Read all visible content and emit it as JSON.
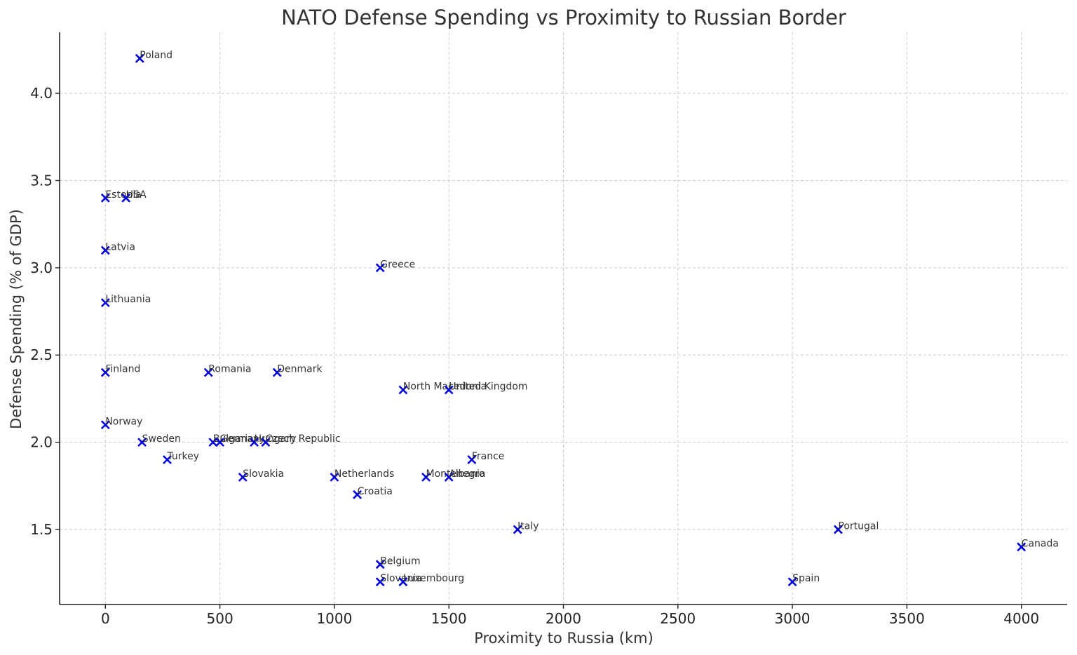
{
  "chart_data": {
    "type": "scatter",
    "title": "NATO Defense Spending vs Proximity to Russian Border",
    "xlabel": "Proximity to Russia (km)",
    "ylabel": "Defense Spending (% of GDP)",
    "xlim": [
      -200,
      4200
    ],
    "ylim": [
      1.07,
      4.35
    ],
    "xticks": [
      0,
      500,
      1000,
      1500,
      2000,
      2500,
      3000,
      3500,
      4000
    ],
    "yticks": [
      1.5,
      2.0,
      2.5,
      3.0,
      3.5,
      4.0
    ],
    "xtick_labels": [
      "0",
      "500",
      "1000",
      "1500",
      "2000",
      "2500",
      "3000",
      "3500",
      "4000"
    ],
    "ytick_labels": [
      "1.5",
      "2.0",
      "2.5",
      "3.0",
      "3.5",
      "4.0"
    ],
    "grid": true,
    "marker": "x",
    "marker_color": "#0000dd",
    "points": [
      {
        "label": "Poland",
        "x": 150,
        "y": 4.2
      },
      {
        "label": "Estonia",
        "x": 0,
        "y": 3.4
      },
      {
        "label": "USA",
        "x": 90,
        "y": 3.4
      },
      {
        "label": "Latvia",
        "x": 0,
        "y": 3.1
      },
      {
        "label": "Greece",
        "x": 1200,
        "y": 3.0
      },
      {
        "label": "Lithuania",
        "x": 0,
        "y": 2.8
      },
      {
        "label": "Finland",
        "x": 0,
        "y": 2.4
      },
      {
        "label": "Romania",
        "x": 450,
        "y": 2.4
      },
      {
        "label": "Denmark",
        "x": 750,
        "y": 2.4
      },
      {
        "label": "North Macedonia",
        "x": 1300,
        "y": 2.3
      },
      {
        "label": "United Kingdom",
        "x": 1500,
        "y": 2.3
      },
      {
        "label": "Norway",
        "x": 0,
        "y": 2.1
      },
      {
        "label": "Sweden",
        "x": 160,
        "y": 2.0
      },
      {
        "label": "Bulgaria",
        "x": 470,
        "y": 2.0
      },
      {
        "label": "Germany",
        "x": 500,
        "y": 2.0
      },
      {
        "label": "Hungary",
        "x": 650,
        "y": 2.0
      },
      {
        "label": "Czech Republic",
        "x": 700,
        "y": 2.0
      },
      {
        "label": "Turkey",
        "x": 270,
        "y": 1.9
      },
      {
        "label": "France",
        "x": 1600,
        "y": 1.9
      },
      {
        "label": "Slovakia",
        "x": 600,
        "y": 1.8
      },
      {
        "label": "Netherlands",
        "x": 1000,
        "y": 1.8
      },
      {
        "label": "Montenegro",
        "x": 1400,
        "y": 1.8
      },
      {
        "label": "Albania",
        "x": 1500,
        "y": 1.8
      },
      {
        "label": "Croatia",
        "x": 1100,
        "y": 1.7
      },
      {
        "label": "Italy",
        "x": 1800,
        "y": 1.5
      },
      {
        "label": "Portugal",
        "x": 3200,
        "y": 1.5
      },
      {
        "label": "Canada",
        "x": 4000,
        "y": 1.4
      },
      {
        "label": "Belgium",
        "x": 1200,
        "y": 1.3
      },
      {
        "label": "Slovenia",
        "x": 1200,
        "y": 1.2
      },
      {
        "label": "Luxembourg",
        "x": 1300,
        "y": 1.2
      },
      {
        "label": "Spain",
        "x": 3000,
        "y": 1.2
      }
    ]
  }
}
